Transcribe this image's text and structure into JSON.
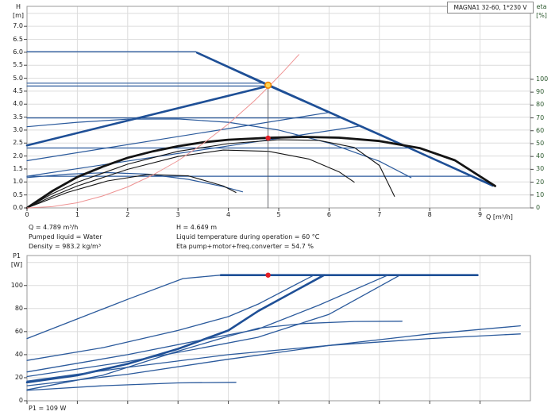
{
  "header": {
    "model_box": "MAGNA1 32-60, 1*230 V"
  },
  "top_chart": {
    "h_axis": {
      "unit_top": "H",
      "unit_bottom": "[m]",
      "ticks": [
        "7.0",
        "6.5",
        "6.0",
        "5.5",
        "5.0",
        "4.5",
        "4.0",
        "3.5",
        "3.0",
        "2.5",
        "2.0",
        "1.5",
        "1.0",
        "0.5",
        "0.0"
      ]
    },
    "eta_axis": {
      "unit_top": "eta",
      "unit_bottom": "[%]",
      "ticks": [
        "100",
        "90",
        "80",
        "70",
        "60",
        "50",
        "40",
        "30",
        "20",
        "10",
        "0"
      ]
    },
    "q_axis": {
      "label": "Q [m³/h]",
      "ticks": [
        "0",
        "1",
        "2",
        "3",
        "4",
        "5",
        "6",
        "7",
        "8",
        "9"
      ]
    }
  },
  "info_block": {
    "q": "Q = 4.789 m³/h",
    "pumped_liquid": "Pumped liquid = Water",
    "density": "Density = 983.2 kg/m³",
    "h": "H = 4.649 m",
    "liquid_temp": "Liquid temperature during operation = 60 °C",
    "eta_total": "Eta pump+motor+freq.converter = 54.7 %"
  },
  "bottom_chart": {
    "p_axis": {
      "unit_top": "P1",
      "unit_bottom": "[W]",
      "ticks": [
        "100",
        "80",
        "60",
        "40",
        "20",
        "0"
      ]
    }
  },
  "footer": {
    "p1": "P1 = 109 W"
  },
  "colors": {
    "curve_blue": "#2b5a9c",
    "curve_blue_thick": "#1e4f96",
    "curve_black": "#141414",
    "system_curve_red": "#ee9393",
    "duty_line": "#55585c",
    "marker_ring_fill": "#ffd64f",
    "marker_ring_stroke": "#f08300",
    "marker_dot_red": "#e31e26",
    "grid": "#dcdcdc",
    "frame": "#9a9a9a",
    "tick": "#444444",
    "eta_text_green": "#2d5a2f"
  },
  "chart_data": [
    {
      "id": "head_capacity",
      "type": "line",
      "title": "MAGNA1 32-60, 1*230 V",
      "xlabel": "Q [m³/h]",
      "ylabel": "H [m]",
      "y2label": "eta [%]",
      "xlim": [
        0,
        10
      ],
      "ylim": [
        0,
        7.77
      ],
      "y2lim": [
        0,
        156.7
      ],
      "grid_x": [
        1,
        2,
        3,
        4,
        5,
        6,
        7,
        8,
        9
      ],
      "grid_y": [
        0.5,
        1,
        1.5,
        2,
        2.5,
        3,
        3.5,
        4,
        4.5,
        5,
        5.5,
        6,
        6.5,
        7,
        7.5
      ],
      "tick_x": [
        0,
        1,
        2,
        3,
        4,
        5,
        6,
        7,
        8,
        9
      ],
      "tick_y": [
        0,
        0.5,
        1,
        1.5,
        2,
        2.5,
        3,
        3.5,
        4,
        4.5,
        5,
        5.5,
        6,
        6.5,
        7
      ],
      "tick_y2": [
        0,
        10,
        20,
        30,
        40,
        50,
        60,
        70,
        80,
        90,
        100
      ],
      "duty_point": {
        "q": 4.789,
        "h": 4.649,
        "eta_pct": 54.7
      },
      "series": [
        {
          "name": "max-envelope",
          "axis": "h",
          "color": "curve_blue",
          "width": 1.4,
          "points": [
            [
              0,
              6.02
            ],
            [
              3.35,
              6.02
            ],
            [
              9.2,
              0.92
            ]
          ]
        },
        {
          "name": "max-curve-selected",
          "axis": "h",
          "color": "curve_blue_thick",
          "width": 2.6,
          "points": [
            [
              3.38,
              5.98
            ],
            [
              4.789,
              4.73
            ],
            [
              7.0,
              2.83
            ],
            [
              9.25,
              0.86
            ]
          ]
        },
        {
          "name": "cp-curve-a",
          "axis": "h",
          "color": "curve_blue",
          "width": 1.2,
          "points": [
            [
              0,
              4.81
            ],
            [
              4.7,
              4.81
            ]
          ]
        },
        {
          "name": "cp-duty-curve",
          "axis": "h",
          "color": "curve_blue",
          "width": 1.2,
          "points": [
            [
              0,
              4.7
            ],
            [
              4.789,
              4.7
            ]
          ]
        },
        {
          "name": "cp-curve-b",
          "axis": "h",
          "color": "curve_blue",
          "width": 1.2,
          "points": [
            [
              0,
              3.47
            ],
            [
              6.24,
              3.47
            ]
          ]
        },
        {
          "name": "cp-curve-c",
          "axis": "h",
          "color": "curve_blue",
          "width": 1.2,
          "points": [
            [
              0,
              2.31
            ],
            [
              7.57,
              2.31
            ]
          ]
        },
        {
          "name": "cp-curve-d",
          "axis": "h",
          "color": "curve_blue",
          "width": 1.2,
          "points": [
            [
              0,
              1.22
            ],
            [
              8.82,
              1.22
            ]
          ]
        },
        {
          "name": "pp-selected",
          "axis": "h",
          "color": "curve_blue_thick",
          "width": 2.6,
          "points": [
            [
              0,
              2.41
            ],
            [
              4.789,
              4.7
            ]
          ]
        },
        {
          "name": "pp-curve-a",
          "axis": "h",
          "color": "curve_blue",
          "width": 1.2,
          "points": [
            [
              0,
              1.82
            ],
            [
              6.0,
              3.68
            ]
          ]
        },
        {
          "name": "pp-curve-b",
          "axis": "h",
          "color": "curve_blue",
          "width": 1.2,
          "points": [
            [
              0,
              1.22
            ],
            [
              6.6,
              3.15
            ]
          ]
        },
        {
          "name": "speed-curve",
          "axis": "h",
          "color": "curve_blue",
          "width": 1.2,
          "points": [
            [
              0,
              3.13
            ],
            [
              1,
              3.3
            ],
            [
              2,
              3.42
            ],
            [
              3,
              3.43
            ],
            [
              4,
              3.3
            ],
            [
              5,
              3.0
            ],
            [
              6,
              2.5
            ],
            [
              7,
              1.8
            ],
            [
              7.63,
              1.17
            ]
          ]
        },
        {
          "name": "min-curve",
          "axis": "h",
          "color": "curve_blue",
          "width": 1.2,
          "points": [
            [
              0,
              1.17
            ],
            [
              0.8,
              1.3
            ],
            [
              1.6,
              1.36
            ],
            [
              2.4,
              1.3
            ],
            [
              3.2,
              1.1
            ],
            [
              3.9,
              0.82
            ],
            [
              4.28,
              0.62
            ]
          ]
        },
        {
          "name": "eta-curve-main",
          "axis": "eta",
          "color": "curve_black",
          "width": 2.8,
          "points": [
            [
              0,
              0
            ],
            [
              0.5,
              13
            ],
            [
              1,
              24
            ],
            [
              1.5,
              32
            ],
            [
              2,
              39
            ],
            [
              2.5,
              44
            ],
            [
              3,
              48
            ],
            [
              3.5,
              51
            ],
            [
              4,
              53
            ],
            [
              4.789,
              54.5
            ],
            [
              5.5,
              55.2
            ],
            [
              6.2,
              54.6
            ],
            [
              7,
              52
            ],
            [
              7.8,
              46.5
            ],
            [
              8.5,
              37
            ],
            [
              9.3,
              17
            ]
          ]
        },
        {
          "name": "eta-curve-2",
          "axis": "eta",
          "color": "curve_black",
          "width": 1.1,
          "points": [
            [
              0,
              0
            ],
            [
              0.5,
              11
            ],
            [
              1,
              20
            ],
            [
              2,
              34
            ],
            [
              3,
              44
            ],
            [
              4,
              50
            ],
            [
              5,
              53
            ],
            [
              5.8,
              52.5
            ],
            [
              6.5,
              47
            ],
            [
              7.0,
              33
            ],
            [
              7.3,
              9
            ]
          ]
        },
        {
          "name": "eta-curve-3",
          "axis": "eta",
          "color": "curve_black",
          "width": 1.1,
          "points": [
            [
              0,
              0
            ],
            [
              0.5,
              9
            ],
            [
              1,
              17
            ],
            [
              2,
              30
            ],
            [
              3,
              40
            ],
            [
              3.9,
              45
            ],
            [
              4.8,
              44
            ],
            [
              5.6,
              38
            ],
            [
              6.2,
              28
            ],
            [
              6.5,
              20
            ]
          ]
        },
        {
          "name": "eta-curve-min",
          "axis": "eta",
          "color": "curve_black",
          "width": 1.1,
          "points": [
            [
              0,
              0
            ],
            [
              0.8,
              12
            ],
            [
              1.6,
              21
            ],
            [
              2.4,
              26
            ],
            [
              3.2,
              25
            ],
            [
              3.9,
              17
            ],
            [
              4.15,
              12
            ]
          ]
        },
        {
          "name": "system-curve",
          "axis": "h",
          "color": "system_curve_red",
          "width": 1.0,
          "points": [
            [
              0,
              0
            ],
            [
              0.5,
              0.05
            ],
            [
              1,
              0.2
            ],
            [
              1.5,
              0.46
            ],
            [
              2,
              0.81
            ],
            [
              2.5,
              1.27
            ],
            [
              3,
              1.82
            ],
            [
              3.5,
              2.48
            ],
            [
              4,
              3.24
            ],
            [
              4.5,
              4.1
            ],
            [
              4.789,
              4.65
            ],
            [
              5.1,
              5.27
            ],
            [
              5.4,
              5.91
            ]
          ]
        },
        {
          "name": "duty-vertical-line",
          "axis": "h",
          "color": "duty_line",
          "width": 0.9,
          "points": [
            [
              4.789,
              4.7
            ],
            [
              4.789,
              0
            ]
          ]
        }
      ],
      "markers": [
        {
          "name": "duty-point-marker",
          "axis": "h",
          "q": 4.789,
          "v": 4.73,
          "style": "ring"
        },
        {
          "name": "eta-point-marker",
          "axis": "eta",
          "q": 4.789,
          "v": 54.3,
          "style": "dot"
        }
      ]
    },
    {
      "id": "power",
      "type": "line",
      "xlabel": "Q [m³/h]",
      "ylabel": "P1 [W]",
      "xlim": [
        0,
        10
      ],
      "ylim": [
        0,
        126
      ],
      "grid_x": [
        1,
        2,
        3,
        4,
        5,
        6,
        7,
        8,
        9
      ],
      "grid_y": [
        20,
        40,
        60,
        80,
        100,
        120
      ],
      "tick_x": [
        0,
        1,
        2,
        3,
        4,
        5,
        6,
        7,
        8,
        9
      ],
      "tick_y": [
        0,
        20,
        40,
        60,
        80,
        100
      ],
      "duty_point": {
        "q": 4.789,
        "p1_w": 109
      },
      "series": [
        {
          "name": "p1-max-rise",
          "axis": "p",
          "color": "curve_blue",
          "width": 1.3,
          "points": [
            [
              0,
              54
            ],
            [
              1,
              71
            ],
            [
              2,
              88
            ],
            [
              3.1,
              106
            ],
            [
              3.85,
              109
            ]
          ]
        },
        {
          "name": "p1-plateau-selected",
          "axis": "p",
          "color": "curve_blue_thick",
          "width": 2.6,
          "points": [
            [
              3.85,
              109
            ],
            [
              8.95,
              109
            ]
          ]
        },
        {
          "name": "p1-selected-rise",
          "axis": "p",
          "color": "curve_blue_thick",
          "width": 2.6,
          "points": [
            [
              0,
              16
            ],
            [
              1,
              22
            ],
            [
              2,
              32
            ],
            [
              3,
              45
            ],
            [
              4,
              61
            ],
            [
              4.6,
              78
            ],
            [
              5.9,
              109
            ]
          ]
        },
        {
          "name": "p1-curve-3",
          "axis": "p",
          "color": "curve_blue",
          "width": 1.3,
          "points": [
            [
              0,
              35
            ],
            [
              1.5,
              46
            ],
            [
              3,
              61
            ],
            [
              4,
              73
            ],
            [
              4.6,
              84
            ],
            [
              5.7,
              109
            ]
          ]
        },
        {
          "name": "p1-curve-4",
          "axis": "p",
          "color": "curve_blue",
          "width": 1.3,
          "points": [
            [
              0,
              25
            ],
            [
              2,
              40
            ],
            [
              3.5,
              53
            ],
            [
              4.58,
              62
            ],
            [
              5.8,
              83
            ],
            [
              7.17,
              109
            ]
          ]
        },
        {
          "name": "p1-curve-5",
          "axis": "p",
          "color": "curve_blue",
          "width": 1.3,
          "points": [
            [
              0,
              21
            ],
            [
              2,
              34
            ],
            [
              3.5,
              46
            ],
            [
              4.58,
              55
            ],
            [
              6,
              75
            ],
            [
              7.41,
              109
            ]
          ]
        },
        {
          "name": "p1-curve-6",
          "axis": "p",
          "color": "curve_blue",
          "width": 1.3,
          "points": [
            [
              0,
              17
            ],
            [
              2,
              29
            ],
            [
              4,
              40
            ],
            [
              6,
              48
            ],
            [
              8,
              54
            ],
            [
              9.8,
              58
            ]
          ]
        },
        {
          "name": "p1-curve-7",
          "axis": "p",
          "color": "curve_blue",
          "width": 1.3,
          "points": [
            [
              0,
              13
            ],
            [
              2,
              23
            ],
            [
              4,
              36
            ],
            [
              6,
              48
            ],
            [
              8,
              58
            ],
            [
              9.8,
              65
            ]
          ]
        },
        {
          "name": "p1-curve-8",
          "axis": "p",
          "color": "curve_blue",
          "width": 1.3,
          "points": [
            [
              0,
              9.5
            ],
            [
              1.5,
              22
            ],
            [
              3,
              43
            ],
            [
              4,
              56
            ],
            [
              4.6,
              63
            ],
            [
              5.5,
              67
            ],
            [
              6.5,
              68.8
            ],
            [
              7.45,
              69
            ]
          ]
        },
        {
          "name": "p1-curve-min",
          "axis": "p",
          "color": "curve_blue",
          "width": 1.3,
          "points": [
            [
              0,
              9
            ],
            [
              1.5,
              13
            ],
            [
              3,
              15.5
            ],
            [
              4.15,
              16
            ]
          ]
        }
      ],
      "markers": [
        {
          "name": "p1-point-marker",
          "axis": "p",
          "q": 4.789,
          "v": 109,
          "style": "dot"
        }
      ]
    }
  ]
}
